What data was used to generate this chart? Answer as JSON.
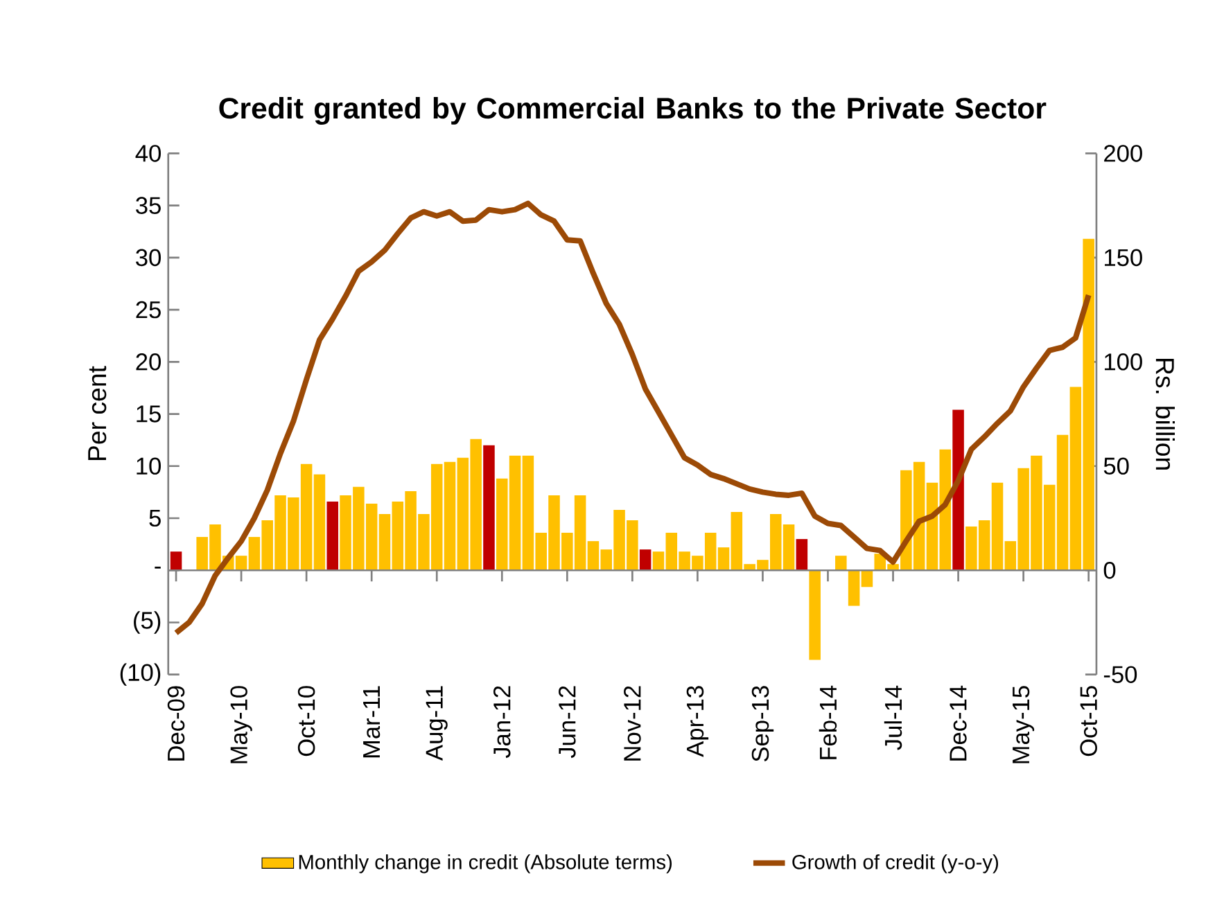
{
  "chart_data": {
    "type": "bar",
    "title": "Credit granted by Commercial Banks to the Private Sector",
    "categories": [
      "Dec-09",
      null,
      null,
      null,
      null,
      "May-10",
      null,
      null,
      null,
      null,
      "Oct-10",
      null,
      null,
      null,
      null,
      "Mar-11",
      null,
      null,
      null,
      null,
      "Aug-11",
      null,
      null,
      null,
      null,
      "Jan-12",
      null,
      null,
      null,
      null,
      "Jun-12",
      null,
      null,
      null,
      null,
      "Nov-12",
      null,
      null,
      null,
      null,
      "Apr-13",
      null,
      null,
      null,
      null,
      "Sep-13",
      null,
      null,
      null,
      null,
      "Feb-14",
      null,
      null,
      null,
      null,
      "Jul-14",
      null,
      null,
      null,
      null,
      "Dec-14",
      null,
      null,
      null,
      null,
      "May-15",
      null,
      null,
      null,
      null,
      "Oct-15"
    ],
    "series": [
      {
        "name": "Monthly change in credit (Absolute terms)",
        "axis": "y2",
        "color": "#ffc000",
        "colors": [
          "#c00000",
          "#ffc000",
          "#ffc000",
          "#ffc000",
          "#ffc000",
          "#ffc000",
          "#ffc000",
          "#ffc000",
          "#ffc000",
          "#ffc000",
          "#ffc000",
          "#ffc000",
          "#c00000",
          "#ffc000",
          "#ffc000",
          "#ffc000",
          "#ffc000",
          "#ffc000",
          "#ffc000",
          "#ffc000",
          "#ffc000",
          "#ffc000",
          "#ffc000",
          "#ffc000",
          "#c00000",
          "#ffc000",
          "#ffc000",
          "#ffc000",
          "#ffc000",
          "#ffc000",
          "#ffc000",
          "#ffc000",
          "#ffc000",
          "#ffc000",
          "#ffc000",
          "#ffc000",
          "#c00000",
          "#ffc000",
          "#ffc000",
          "#ffc000",
          "#ffc000",
          "#ffc000",
          "#ffc000",
          "#ffc000",
          "#ffc000",
          "#ffc000",
          "#ffc000",
          "#ffc000",
          "#c00000",
          "#ffc000",
          "#ffc000",
          "#ffc000",
          "#ffc000",
          "#ffc000",
          "#ffc000",
          "#ffc000",
          "#ffc000",
          "#ffc000",
          "#ffc000",
          "#ffc000",
          "#c00000",
          "#ffc000",
          "#ffc000",
          "#ffc000",
          "#ffc000",
          "#ffc000",
          "#ffc000",
          "#ffc000",
          "#ffc000",
          "#ffc000",
          "#ffc000"
        ],
        "values": [
          9,
          null,
          16,
          22,
          7,
          7,
          16,
          24,
          36,
          35,
          51,
          46,
          33,
          36,
          40,
          32,
          27,
          33,
          38,
          27,
          51,
          52,
          54,
          63,
          60,
          44,
          55,
          55,
          18,
          36,
          18,
          36,
          14,
          10,
          29,
          24,
          10,
          9,
          18,
          9,
          7,
          18,
          11,
          28,
          3,
          5,
          27,
          22,
          15,
          -43,
          null,
          7,
          -17,
          -8,
          8,
          3,
          48,
          52,
          42,
          58,
          77,
          21,
          24,
          42,
          14,
          49,
          55,
          41,
          65,
          88,
          159
        ]
      },
      {
        "name": "Growth of credit (y-o-y)",
        "type": "line",
        "color": "#9c4a06",
        "values": [
          -6.0,
          -5.0,
          -3.2,
          -0.5,
          1.2,
          2.8,
          5.0,
          7.7,
          11.2,
          14.3,
          18.3,
          22.1,
          24.1,
          26.3,
          28.7,
          29.6,
          30.7,
          32.3,
          33.8,
          34.4,
          34.0,
          34.4,
          33.5,
          33.6,
          34.6,
          34.4,
          34.6,
          35.2,
          34.1,
          33.5,
          31.7,
          31.6,
          28.5,
          25.6,
          23.6,
          20.7,
          17.4,
          15.2,
          13.0,
          10.8,
          10.1,
          9.2,
          8.8,
          8.3,
          7.8,
          7.5,
          7.3,
          7.2,
          7.4,
          5.2,
          4.5,
          4.3,
          3.2,
          2.1,
          1.9,
          0.8,
          2.8,
          4.7,
          5.2,
          6.3,
          8.6,
          11.6,
          12.8,
          14.1,
          15.3,
          17.6,
          19.4,
          21.1,
          21.4,
          22.3,
          26.4
        ]
      }
    ],
    "ylabel": "Per cent",
    "y2label": "Rs. billion",
    "ylim": [
      -10,
      40
    ],
    "yticks": [
      {
        "value": -10,
        "label": "(10)"
      },
      {
        "value": -5,
        "label": "(5)"
      },
      {
        "value": 0,
        "label": "-"
      },
      5,
      10,
      15,
      20,
      25,
      30,
      35,
      40
    ],
    "y2lim": [
      -50,
      200
    ],
    "y2ticks": [
      -50,
      0,
      50,
      100,
      150,
      200
    ],
    "legend": "bottom"
  }
}
